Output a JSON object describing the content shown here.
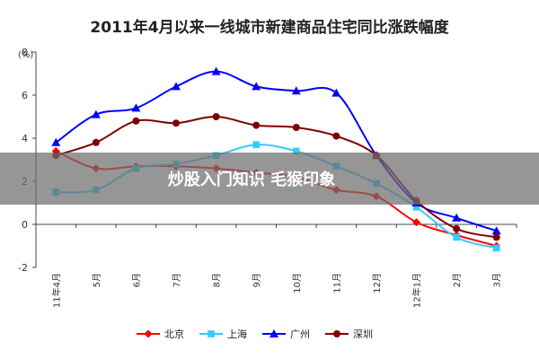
{
  "chart_data": {
    "type": "line",
    "title": "2011年4月以来一线城市新建商品住宅同比涨跌幅度",
    "ylabel": "(%)",
    "ylim": [
      -2,
      8
    ],
    "yticks": [
      -2,
      0,
      2,
      4,
      6,
      8
    ],
    "categories": [
      "11年4月",
      "5月",
      "6月",
      "7月",
      "8月",
      "9月",
      "10月",
      "11月",
      "12月",
      "12年1月",
      "2月",
      "3月"
    ],
    "series": [
      {
        "name": "北京",
        "color": "#ff0000",
        "marker": "diamond",
        "values": [
          3.4,
          2.6,
          2.7,
          2.7,
          2.6,
          2.4,
          2.2,
          1.6,
          1.3,
          0.1,
          -0.5,
          -1.0
        ]
      },
      {
        "name": "上海",
        "color": "#33ccff",
        "marker": "square",
        "values": [
          1.5,
          1.6,
          2.6,
          2.8,
          3.2,
          3.7,
          3.4,
          2.7,
          1.9,
          0.8,
          -0.6,
          -1.1
        ]
      },
      {
        "name": "广州",
        "color": "#0000ff",
        "marker": "triangle",
        "values": [
          3.8,
          5.1,
          5.4,
          6.4,
          7.1,
          6.4,
          6.2,
          6.1,
          3.2,
          1.0,
          0.3,
          -0.3
        ]
      },
      {
        "name": "深圳",
        "color": "#7f0000",
        "marker": "circle",
        "values": [
          3.2,
          3.8,
          4.8,
          4.7,
          5.0,
          4.6,
          4.5,
          4.1,
          3.2,
          1.1,
          -0.2,
          -0.6
        ]
      }
    ]
  },
  "watermark": {
    "text": "炒股入门知识 毛猴印象"
  }
}
